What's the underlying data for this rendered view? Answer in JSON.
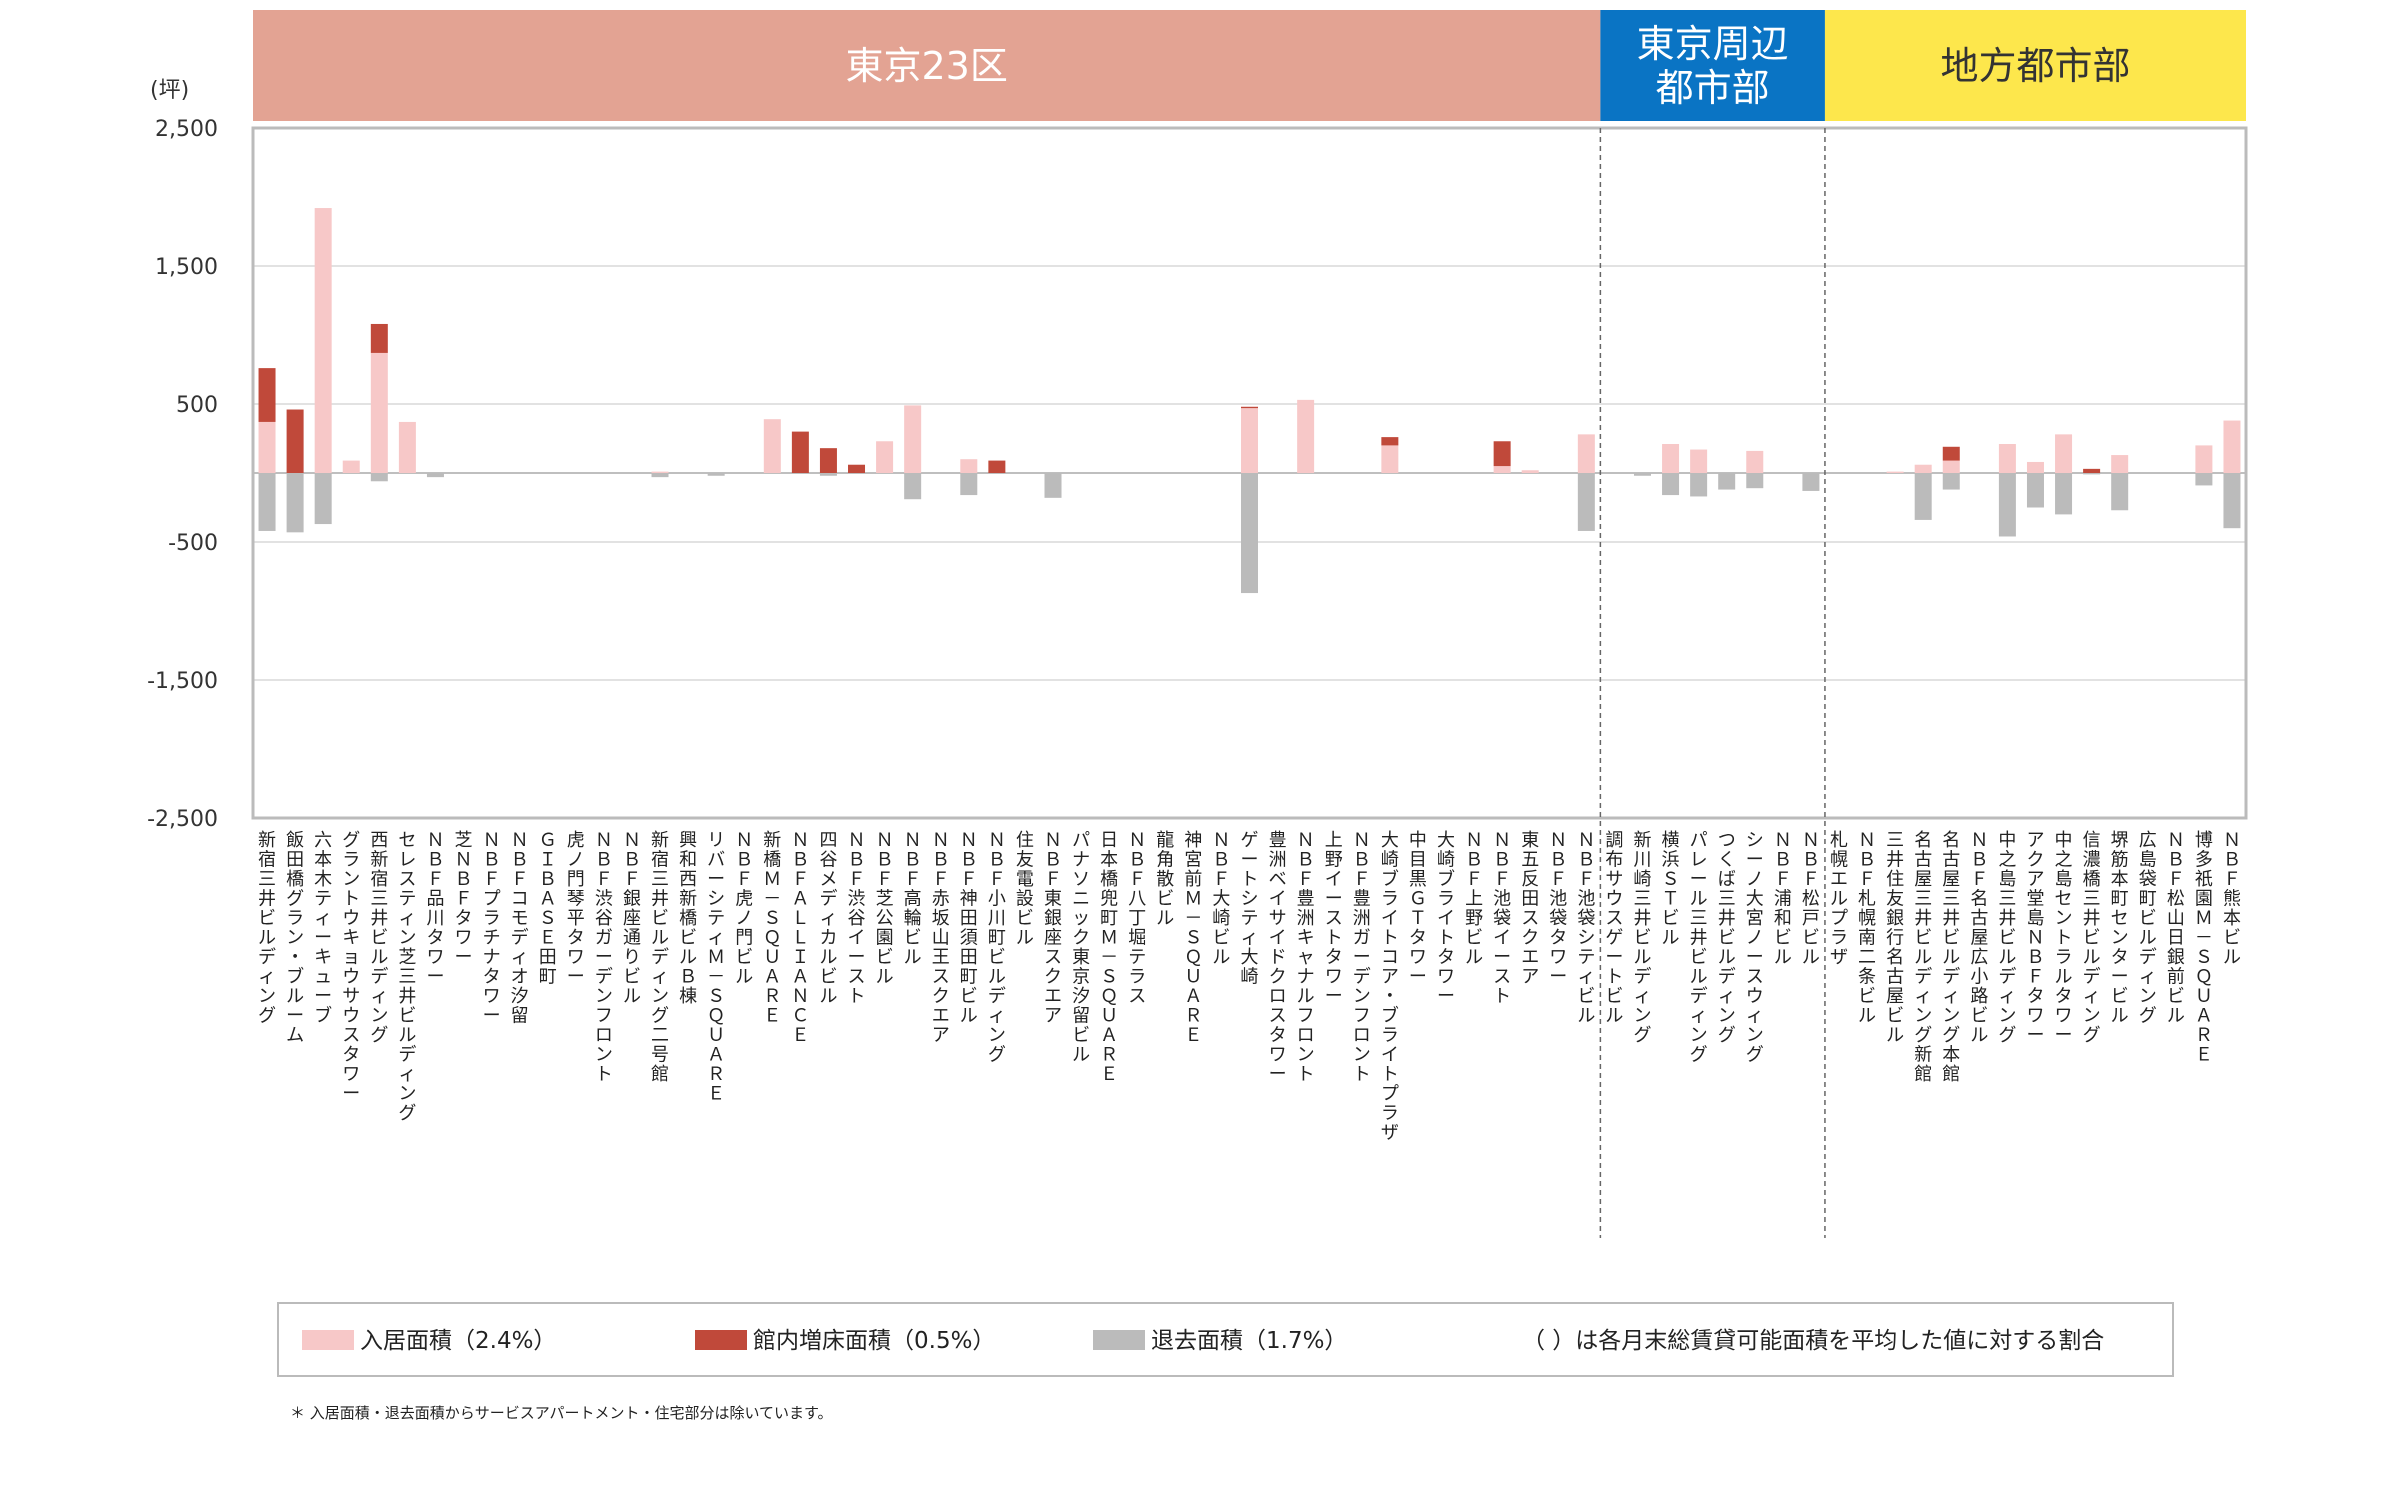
{
  "chart_data": {
    "type": "bar",
    "stacked": true,
    "unit": "(坪)",
    "ylim": [
      -2500,
      2500
    ],
    "yticks": [
      2500,
      1500,
      500,
      -500,
      -1500,
      -2500
    ],
    "ytick_labels": [
      "2,500",
      "1,500",
      "500",
      "-500",
      "-1,500",
      "-2,500"
    ],
    "grid": true,
    "categories": [
      "新宿三井ビルディング",
      "飯田橋グラン・ブルーム",
      "六本木ティーキューブ",
      "グラントウキョウサウスタワー",
      "西新宿三井ビルディング",
      "セレスティン芝三井ビルディング",
      "ＮＢＦ品川タワー",
      "芝ＮＢＦタワー",
      "ＮＢＦプラチナタワー",
      "ＮＢＦコモディオ汐留",
      "ＧＩＢＡＳＥ田町",
      "虎ノ門琴平タワー",
      "ＮＢＦ渋谷ガーデンフロント",
      "ＮＢＦ銀座通りビル",
      "新宿三井ビルディング二号館",
      "興和西新橋ビルＢ棟",
      "リバーシティＭ－ＳＱＵＡＲＥ",
      "ＮＢＦ虎ノ門ビル",
      "新橋Ｍ－ＳＱＵＡＲＥ",
      "ＮＢＦ ＡＬＬＩＡＮＣＥ",
      "四谷メディカルビル",
      "ＮＢＦ渋谷イースト",
      "ＮＢＦ芝公園ビル",
      "ＮＢＦ高輪ビル",
      "ＮＢＦ赤坂山王スクエア",
      "ＮＢＦ神田須田町ビル",
      "ＮＢＦ小川町ビルディング",
      "住友電設ビル",
      "ＮＢＦ東銀座スクエア",
      "パナソニック東京汐留ビル",
      "日本橋兜町Ｍ－ＳＱＵＡＲＥ",
      "ＮＢＦ八丁堀テラス",
      "龍角散ビル",
      "神宮前Ｍ－ＳＱＵＡＲＥ",
      "ＮＢＦ大崎ビル",
      "ゲートシティ大崎",
      "豊洲ベイサイドクロスタワー",
      "ＮＢＦ豊洲キャナルフロント",
      "上野イーストタワー",
      "ＮＢＦ豊洲ガーデンフロント",
      "大崎ブライトコア・ブライトプラザ",
      "中目黒ＧＴタワー",
      "大崎ブライトタワー",
      "ＮＢＦ上野ビル",
      "ＮＢＦ池袋イースト",
      "東五反田スクエア",
      "ＮＢＦ池袋タワー",
      "ＮＢＦ池袋シティビル",
      "調布サウスゲートビル",
      "新川崎三井ビルディング",
      "横浜ＳＴビル",
      "パレール三井ビルディング",
      "つくば三井ビルディング",
      "シーノ大宮ノースウィング",
      "ＮＢＦ浦和ビル",
      "ＮＢＦ松戸ビル",
      "札幌エルプラザ",
      "ＮＢＦ札幌南二条ビル",
      "三井住友銀行名古屋ビル",
      "名古屋三井ビルディング新館",
      "名古屋三井ビルディング本館",
      "ＮＢＦ名古屋広小路ビル",
      "中之島三井ビルディング",
      "アクア堂島ＮＢＦタワー",
      "中之島セントラルタワー",
      "信濃橋三井ビルディング",
      "堺筋本町センタービル",
      "広島袋町ビルディング",
      "ＮＢＦ松山日銀前ビル",
      "博多祇園Ｍ－ＳＱＵＡＲＥ",
      "ＮＢＦ熊本ビル"
    ],
    "series": [
      {
        "name": "入居面積（2.4%）",
        "color": "#f7c8c8",
        "values": [
          370,
          0,
          1920,
          90,
          870,
          370,
          0,
          0,
          0,
          0,
          0,
          0,
          0,
          0,
          10,
          0,
          0,
          0,
          390,
          0,
          0,
          0,
          230,
          490,
          0,
          100,
          0,
          0,
          0,
          0,
          0,
          0,
          0,
          0,
          0,
          470,
          0,
          530,
          0,
          0,
          200,
          0,
          0,
          0,
          50,
          20,
          0,
          280,
          0,
          0,
          210,
          170,
          0,
          160,
          0,
          0,
          0,
          0,
          10,
          60,
          90,
          0,
          210,
          80,
          280,
          0,
          130,
          0,
          0,
          200,
          380
        ]
      },
      {
        "name": "館内増床面積（0.5%）",
        "color": "#c0493a",
        "values": [
          390,
          460,
          0,
          0,
          210,
          0,
          0,
          0,
          0,
          0,
          0,
          0,
          0,
          0,
          0,
          0,
          0,
          0,
          0,
          300,
          180,
          60,
          0,
          0,
          0,
          0,
          90,
          0,
          0,
          0,
          0,
          0,
          0,
          0,
          0,
          10,
          0,
          0,
          0,
          0,
          60,
          0,
          0,
          0,
          180,
          0,
          0,
          0,
          0,
          0,
          0,
          0,
          0,
          0,
          0,
          0,
          0,
          0,
          0,
          0,
          100,
          0,
          0,
          0,
          0,
          30,
          0,
          0,
          0,
          0,
          0
        ]
      },
      {
        "name": "退去面積（1.7%）",
        "color": "#bbbbbb",
        "values": [
          -420,
          -430,
          -370,
          0,
          -60,
          0,
          -30,
          0,
          0,
          0,
          0,
          0,
          0,
          0,
          -30,
          0,
          -20,
          0,
          0,
          0,
          -20,
          0,
          0,
          -190,
          0,
          -160,
          0,
          0,
          -180,
          0,
          0,
          0,
          0,
          0,
          0,
          -870,
          0,
          0,
          0,
          0,
          0,
          0,
          0,
          0,
          0,
          0,
          0,
          -420,
          0,
          -20,
          -160,
          -170,
          -120,
          -110,
          0,
          -130,
          0,
          0,
          0,
          -340,
          -120,
          0,
          -460,
          -250,
          -300,
          -10,
          -270,
          0,
          0,
          -90,
          -400
        ]
      }
    ],
    "legend_note": "（ ）は各月末総賃貸可能面積を平均した値に対する割合",
    "legend_position": "bottom"
  },
  "regions": [
    {
      "label": "東京23区",
      "label_lines": [
        "東京23区"
      ],
      "color": "#e3a393",
      "text_color": "#ffffff",
      "start": 0,
      "end": 47
    },
    {
      "label": "東京周辺都市部",
      "label_lines": [
        "東京周辺",
        "都市部"
      ],
      "color": "#0a74c4",
      "text_color": "#ffffff",
      "start": 48,
      "end": 55
    },
    {
      "label": "地方都市部",
      "label_lines": [
        "地方都市部"
      ],
      "color": "#fde74c",
      "text_color": "#333333",
      "start": 56,
      "end": 70
    }
  ],
  "footnote": "＊ 入居面積・退去面積からサービスアパートメント・住宅部分は除いています。"
}
